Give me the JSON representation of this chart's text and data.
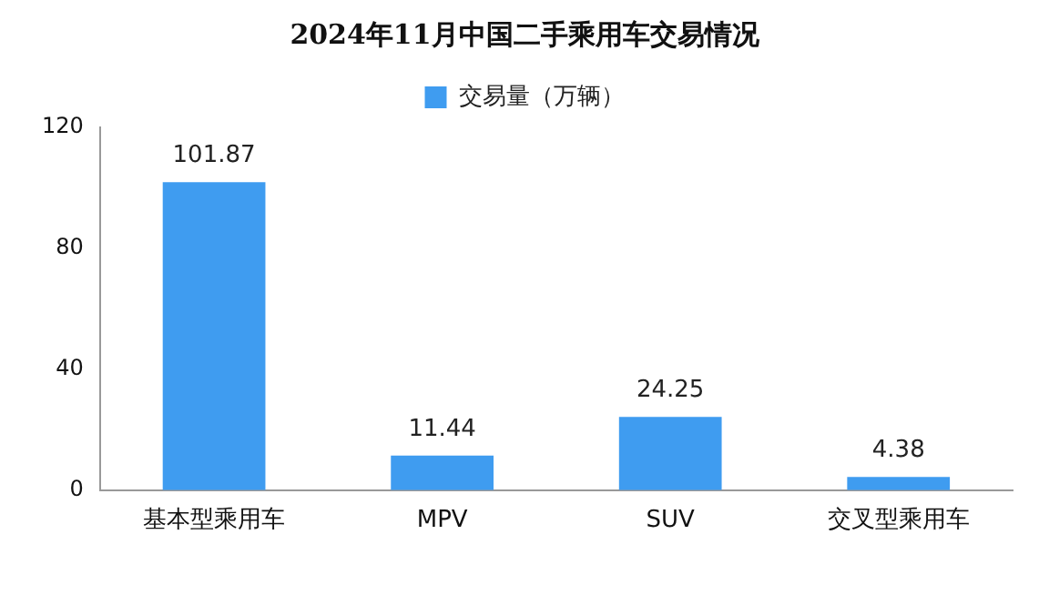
{
  "chart_data": {
    "type": "bar",
    "title": "2024年11月中国二手乘用车交易情况",
    "categories": [
      "基本型乘用车",
      "MPV",
      "SUV",
      "交叉型乘用车"
    ],
    "series": [
      {
        "name": "交易量（万辆）",
        "color": "#3f9cf0",
        "values": [
          101.87,
          11.44,
          24.25,
          4.38
        ]
      }
    ],
    "ylim": [
      0,
      120
    ],
    "yticks": [
      0,
      40,
      80,
      120
    ],
    "grid": false,
    "legend": "top",
    "data_labels": true
  }
}
